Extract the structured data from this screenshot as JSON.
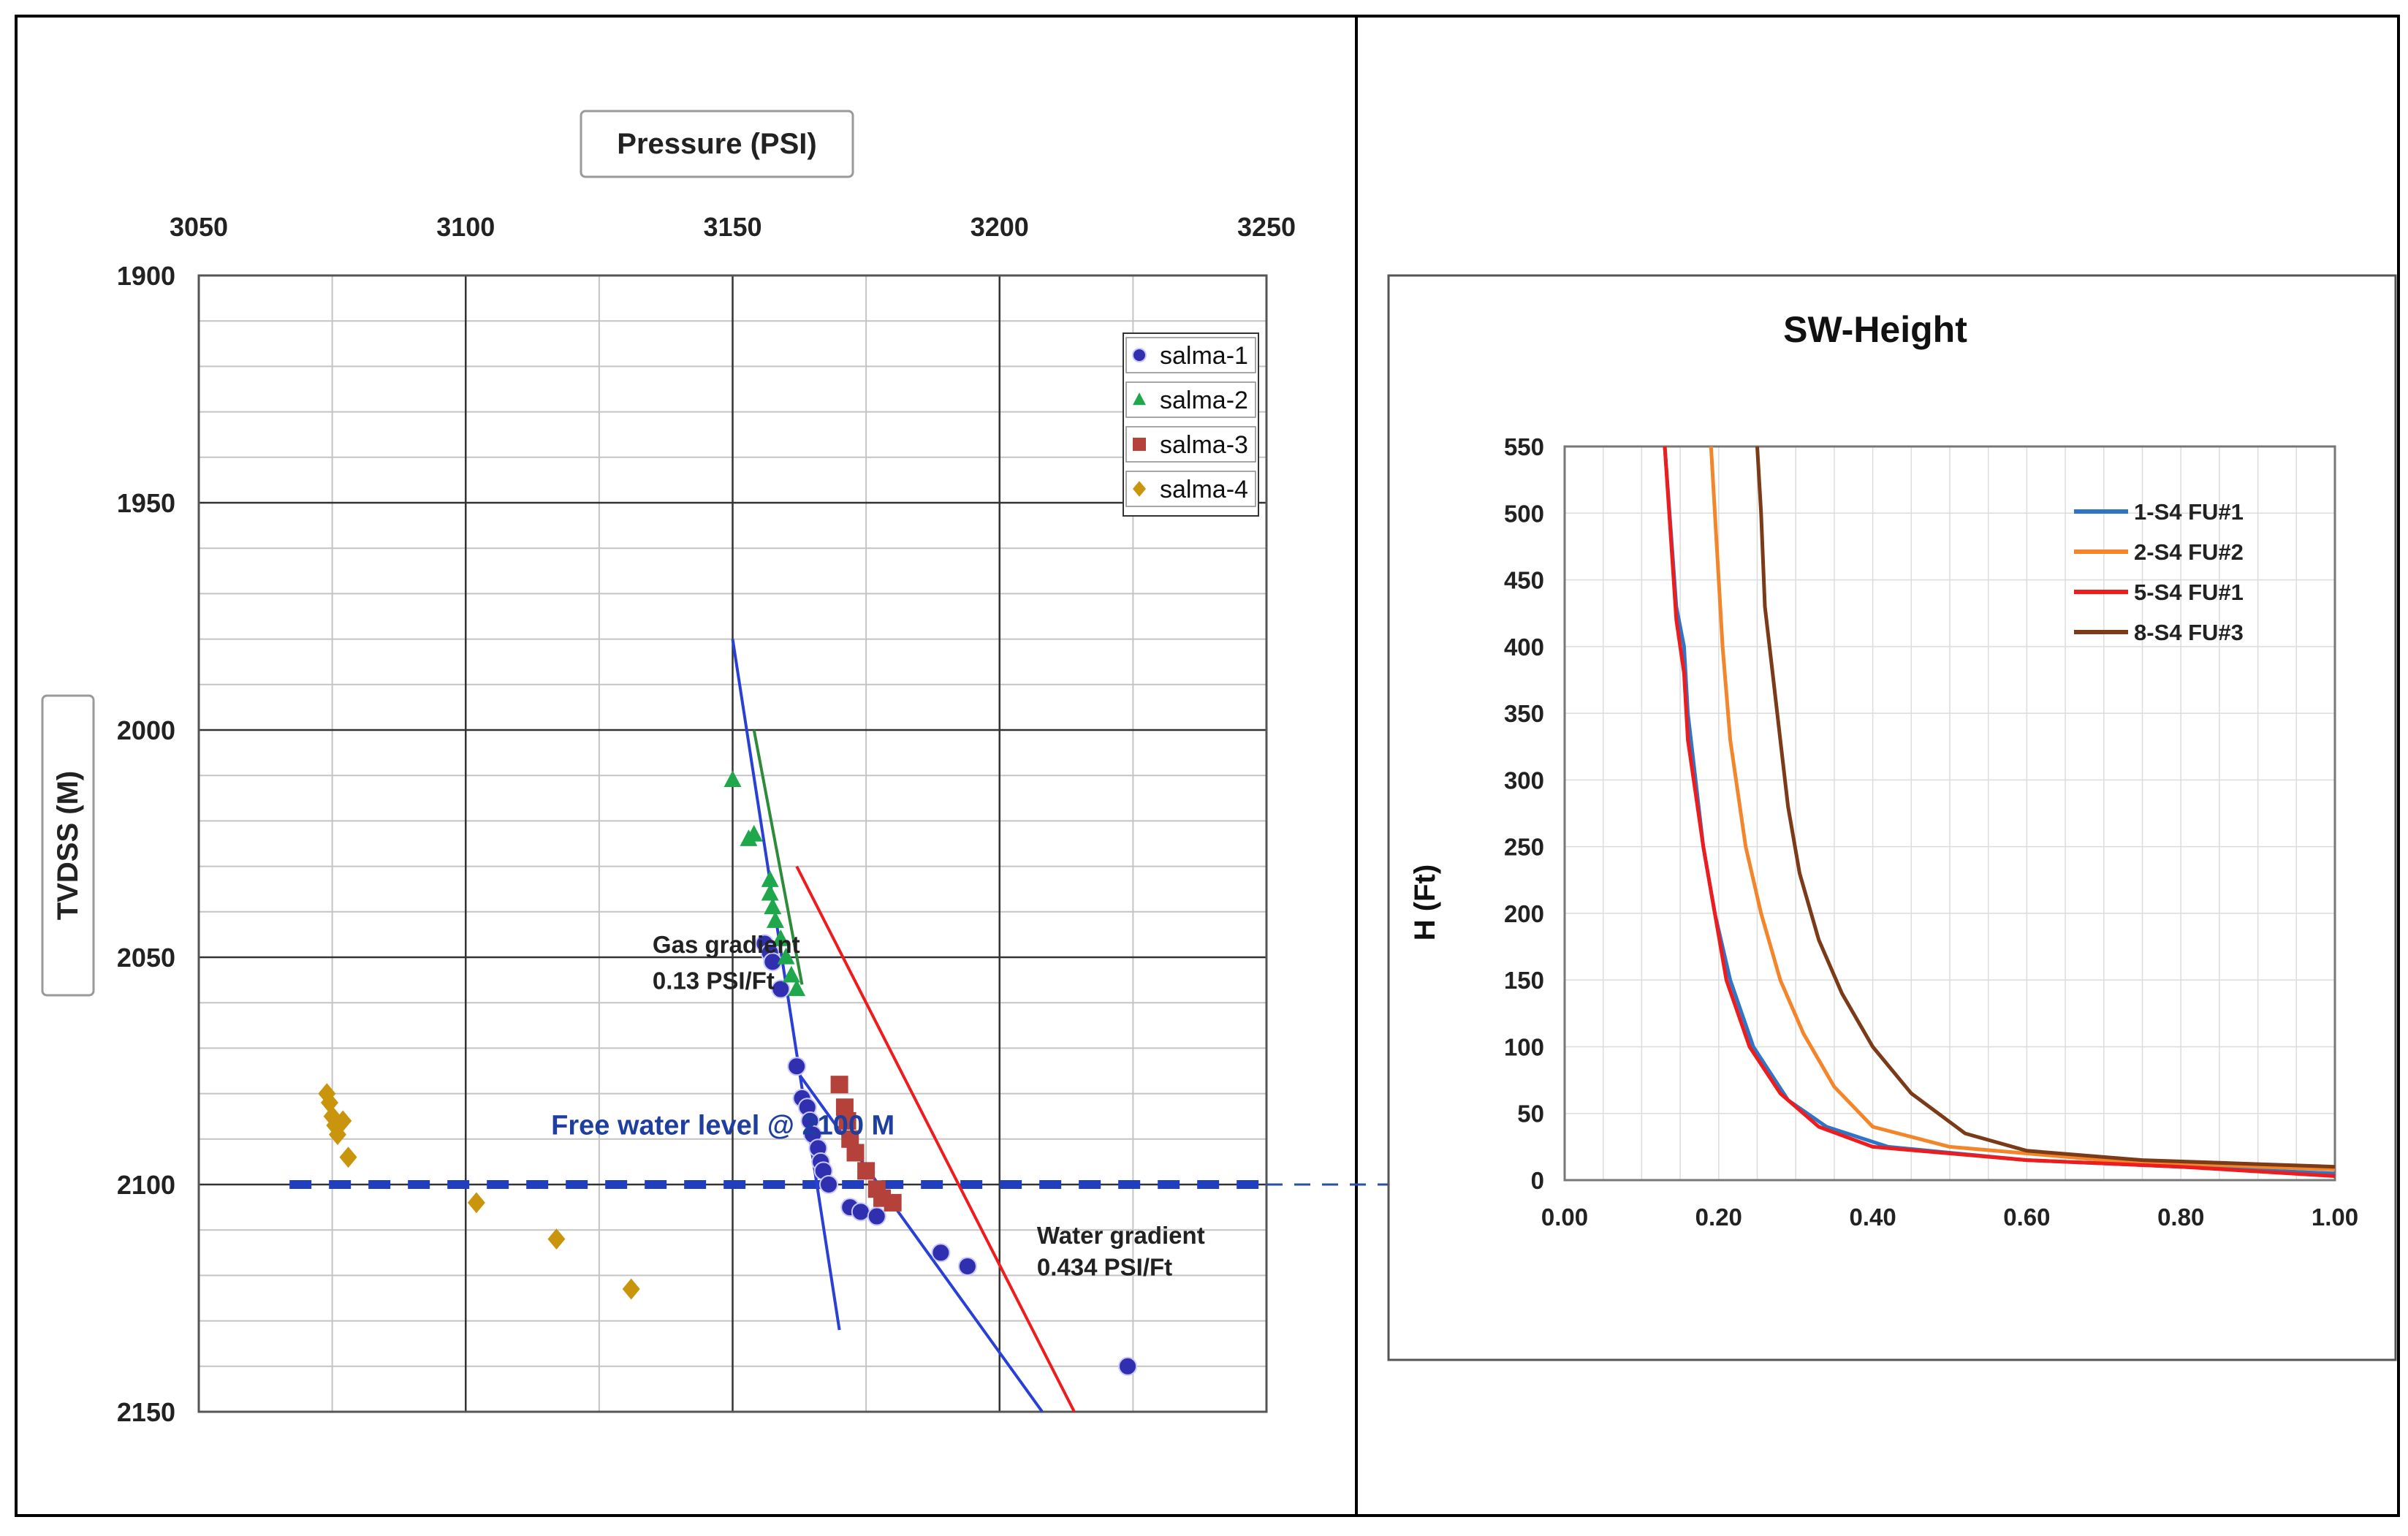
{
  "chart_data": [
    {
      "type": "scatter",
      "title": "",
      "x_axis_title": "Pressure (PSI)",
      "y_axis_title": "TVDSS (M)",
      "x_ticks": [
        "3050",
        "3100",
        "3150",
        "3200",
        "3250"
      ],
      "y_ticks": [
        "1900",
        "1950",
        "2000",
        "2050",
        "2100",
        "2150"
      ],
      "xlim": [
        3050,
        3250
      ],
      "ylim": [
        1900,
        2150
      ],
      "y_reversed": true,
      "x_axis_position": "top",
      "grid": true,
      "legend_position": "top-right",
      "series": [
        {
          "name": "salma-1",
          "marker": "circle",
          "color": "#2f2fb0",
          "points": [
            [
              3156,
              2047
            ],
            [
              3157,
              2049
            ],
            [
              3157.5,
              2051
            ],
            [
              3159,
              2057
            ],
            [
              3162,
              2074
            ],
            [
              3163,
              2081
            ],
            [
              3164,
              2083
            ],
            [
              3164.5,
              2086
            ],
            [
              3165,
              2089
            ],
            [
              3166,
              2092
            ],
            [
              3166.5,
              2095
            ],
            [
              3167,
              2097
            ],
            [
              3168,
              2100
            ],
            [
              3172,
              2105
            ],
            [
              3174,
              2106
            ],
            [
              3177,
              2107
            ],
            [
              3189,
              2115
            ],
            [
              3194,
              2118
            ],
            [
              3224,
              2140
            ]
          ]
        },
        {
          "name": "salma-2",
          "marker": "triangle",
          "color": "#1ea84b",
          "points": [
            [
              3150,
              2011
            ],
            [
              3153,
              2024
            ],
            [
              3154,
              2023
            ],
            [
              3157,
              2033
            ],
            [
              3157,
              2036
            ],
            [
              3157.5,
              2039
            ],
            [
              3158,
              2042
            ],
            [
              3159,
              2046
            ],
            [
              3160,
              2050
            ],
            [
              3161,
              2054
            ],
            [
              3162,
              2057
            ]
          ]
        },
        {
          "name": "salma-3",
          "marker": "square",
          "color": "#b5423a",
          "points": [
            [
              3170,
              2078
            ],
            [
              3171,
              2083
            ],
            [
              3171.5,
              2086
            ],
            [
              3172,
              2090
            ],
            [
              3173,
              2093
            ],
            [
              3175,
              2097
            ],
            [
              3177,
              2101
            ],
            [
              3178,
              2103
            ],
            [
              3180,
              2104
            ]
          ]
        },
        {
          "name": "salma-4",
          "marker": "diamond",
          "color": "#c9950c",
          "points": [
            [
              3074,
              2080
            ],
            [
              3074.5,
              2082
            ],
            [
              3075,
              2085
            ],
            [
              3075.5,
              2087
            ],
            [
              3076,
              2089
            ],
            [
              3077,
              2086
            ],
            [
              3078,
              2094
            ],
            [
              3102,
              2104
            ],
            [
              3117,
              2112
            ],
            [
              3131,
              2123
            ]
          ]
        }
      ],
      "lines": [
        {
          "role": "gas-fit",
          "color": "#2a3fd6",
          "from": [
            3150,
            1980
          ],
          "to": [
            3170,
            2132
          ]
        },
        {
          "role": "gas-trend",
          "color": "#2e8b3a",
          "from": [
            3154,
            2000
          ],
          "to": [
            3163,
            2056
          ]
        },
        {
          "role": "water-fit-red",
          "color": "#ee1c1c",
          "from": [
            3162,
            2030
          ],
          "to": [
            3214,
            2150
          ]
        },
        {
          "role": "water-fit-blue",
          "color": "#2a3fd6",
          "from": [
            3162,
            2075
          ],
          "to": [
            3208,
            2150
          ]
        }
      ],
      "annotations": [
        {
          "text": "Gas gradient",
          "x": 3135,
          "y": 2049
        },
        {
          "text": "0.13 PSI/Ft",
          "x": 3135,
          "y": 2057
        },
        {
          "text": "Free water level @ 2100 M",
          "x": 3116,
          "y": 2089
        },
        {
          "text": "Water gradient",
          "x": 3207,
          "y": 2113
        },
        {
          "text": "0.434 PSI/Ft",
          "x": 3207,
          "y": 2120
        }
      ],
      "fwl_depth": 2100
    },
    {
      "type": "line",
      "title": "SW-Height",
      "xlabel": "",
      "ylabel": "H (Ft)",
      "x_ticks": [
        "0.00",
        "0.20",
        "0.40",
        "0.60",
        "0.80",
        "1.00"
      ],
      "y_ticks": [
        "0",
        "50",
        "100",
        "150",
        "200",
        "250",
        "300",
        "350",
        "400",
        "450",
        "500",
        "550"
      ],
      "xlim": [
        0,
        1
      ],
      "ylim": [
        0,
        550
      ],
      "grid": true,
      "legend_position": "top-right",
      "series": [
        {
          "name": "1-S4 FU#1",
          "color": "#2e75c8",
          "points": [
            [
              0.13,
              550
            ],
            [
              0.145,
              430
            ],
            [
              0.155,
              400
            ],
            [
              0.16,
              350
            ],
            [
              0.17,
              300
            ],
            [
              0.18,
              250
            ],
            [
              0.195,
              200
            ],
            [
              0.215,
              150
            ],
            [
              0.245,
              100
            ],
            [
              0.29,
              60
            ],
            [
              0.34,
              40
            ],
            [
              0.42,
              25
            ],
            [
              0.6,
              15
            ],
            [
              0.8,
              10
            ],
            [
              1.0,
              5
            ]
          ]
        },
        {
          "name": "2-S4 FU#2",
          "color": "#f3862b",
          "points": [
            [
              0.19,
              550
            ],
            [
              0.205,
              400
            ],
            [
              0.215,
              330
            ],
            [
              0.235,
              250
            ],
            [
              0.255,
              200
            ],
            [
              0.28,
              150
            ],
            [
              0.31,
              110
            ],
            [
              0.35,
              70
            ],
            [
              0.4,
              40
            ],
            [
              0.5,
              25
            ],
            [
              0.7,
              15
            ],
            [
              0.9,
              10
            ],
            [
              1.0,
              8
            ]
          ]
        },
        {
          "name": "5-S4 FU#1",
          "color": "#ee1c1c",
          "points": [
            [
              0.13,
              550
            ],
            [
              0.145,
              420
            ],
            [
              0.155,
              380
            ],
            [
              0.16,
              330
            ],
            [
              0.17,
              290
            ],
            [
              0.18,
              250
            ],
            [
              0.195,
              200
            ],
            [
              0.21,
              150
            ],
            [
              0.24,
              100
            ],
            [
              0.28,
              65
            ],
            [
              0.33,
              40
            ],
            [
              0.4,
              25
            ],
            [
              0.6,
              15
            ],
            [
              0.8,
              10
            ],
            [
              1.0,
              3
            ]
          ]
        },
        {
          "name": "8-S4 FU#3",
          "color": "#7b3a18",
          "points": [
            [
              0.25,
              550
            ],
            [
              0.255,
              500
            ],
            [
              0.26,
              430
            ],
            [
              0.27,
              380
            ],
            [
              0.28,
              330
            ],
            [
              0.29,
              280
            ],
            [
              0.305,
              230
            ],
            [
              0.33,
              180
            ],
            [
              0.36,
              140
            ],
            [
              0.4,
              100
            ],
            [
              0.45,
              65
            ],
            [
              0.52,
              35
            ],
            [
              0.6,
              22
            ],
            [
              0.75,
              15
            ],
            [
              0.9,
              12
            ],
            [
              1.0,
              10
            ]
          ]
        }
      ]
    }
  ]
}
